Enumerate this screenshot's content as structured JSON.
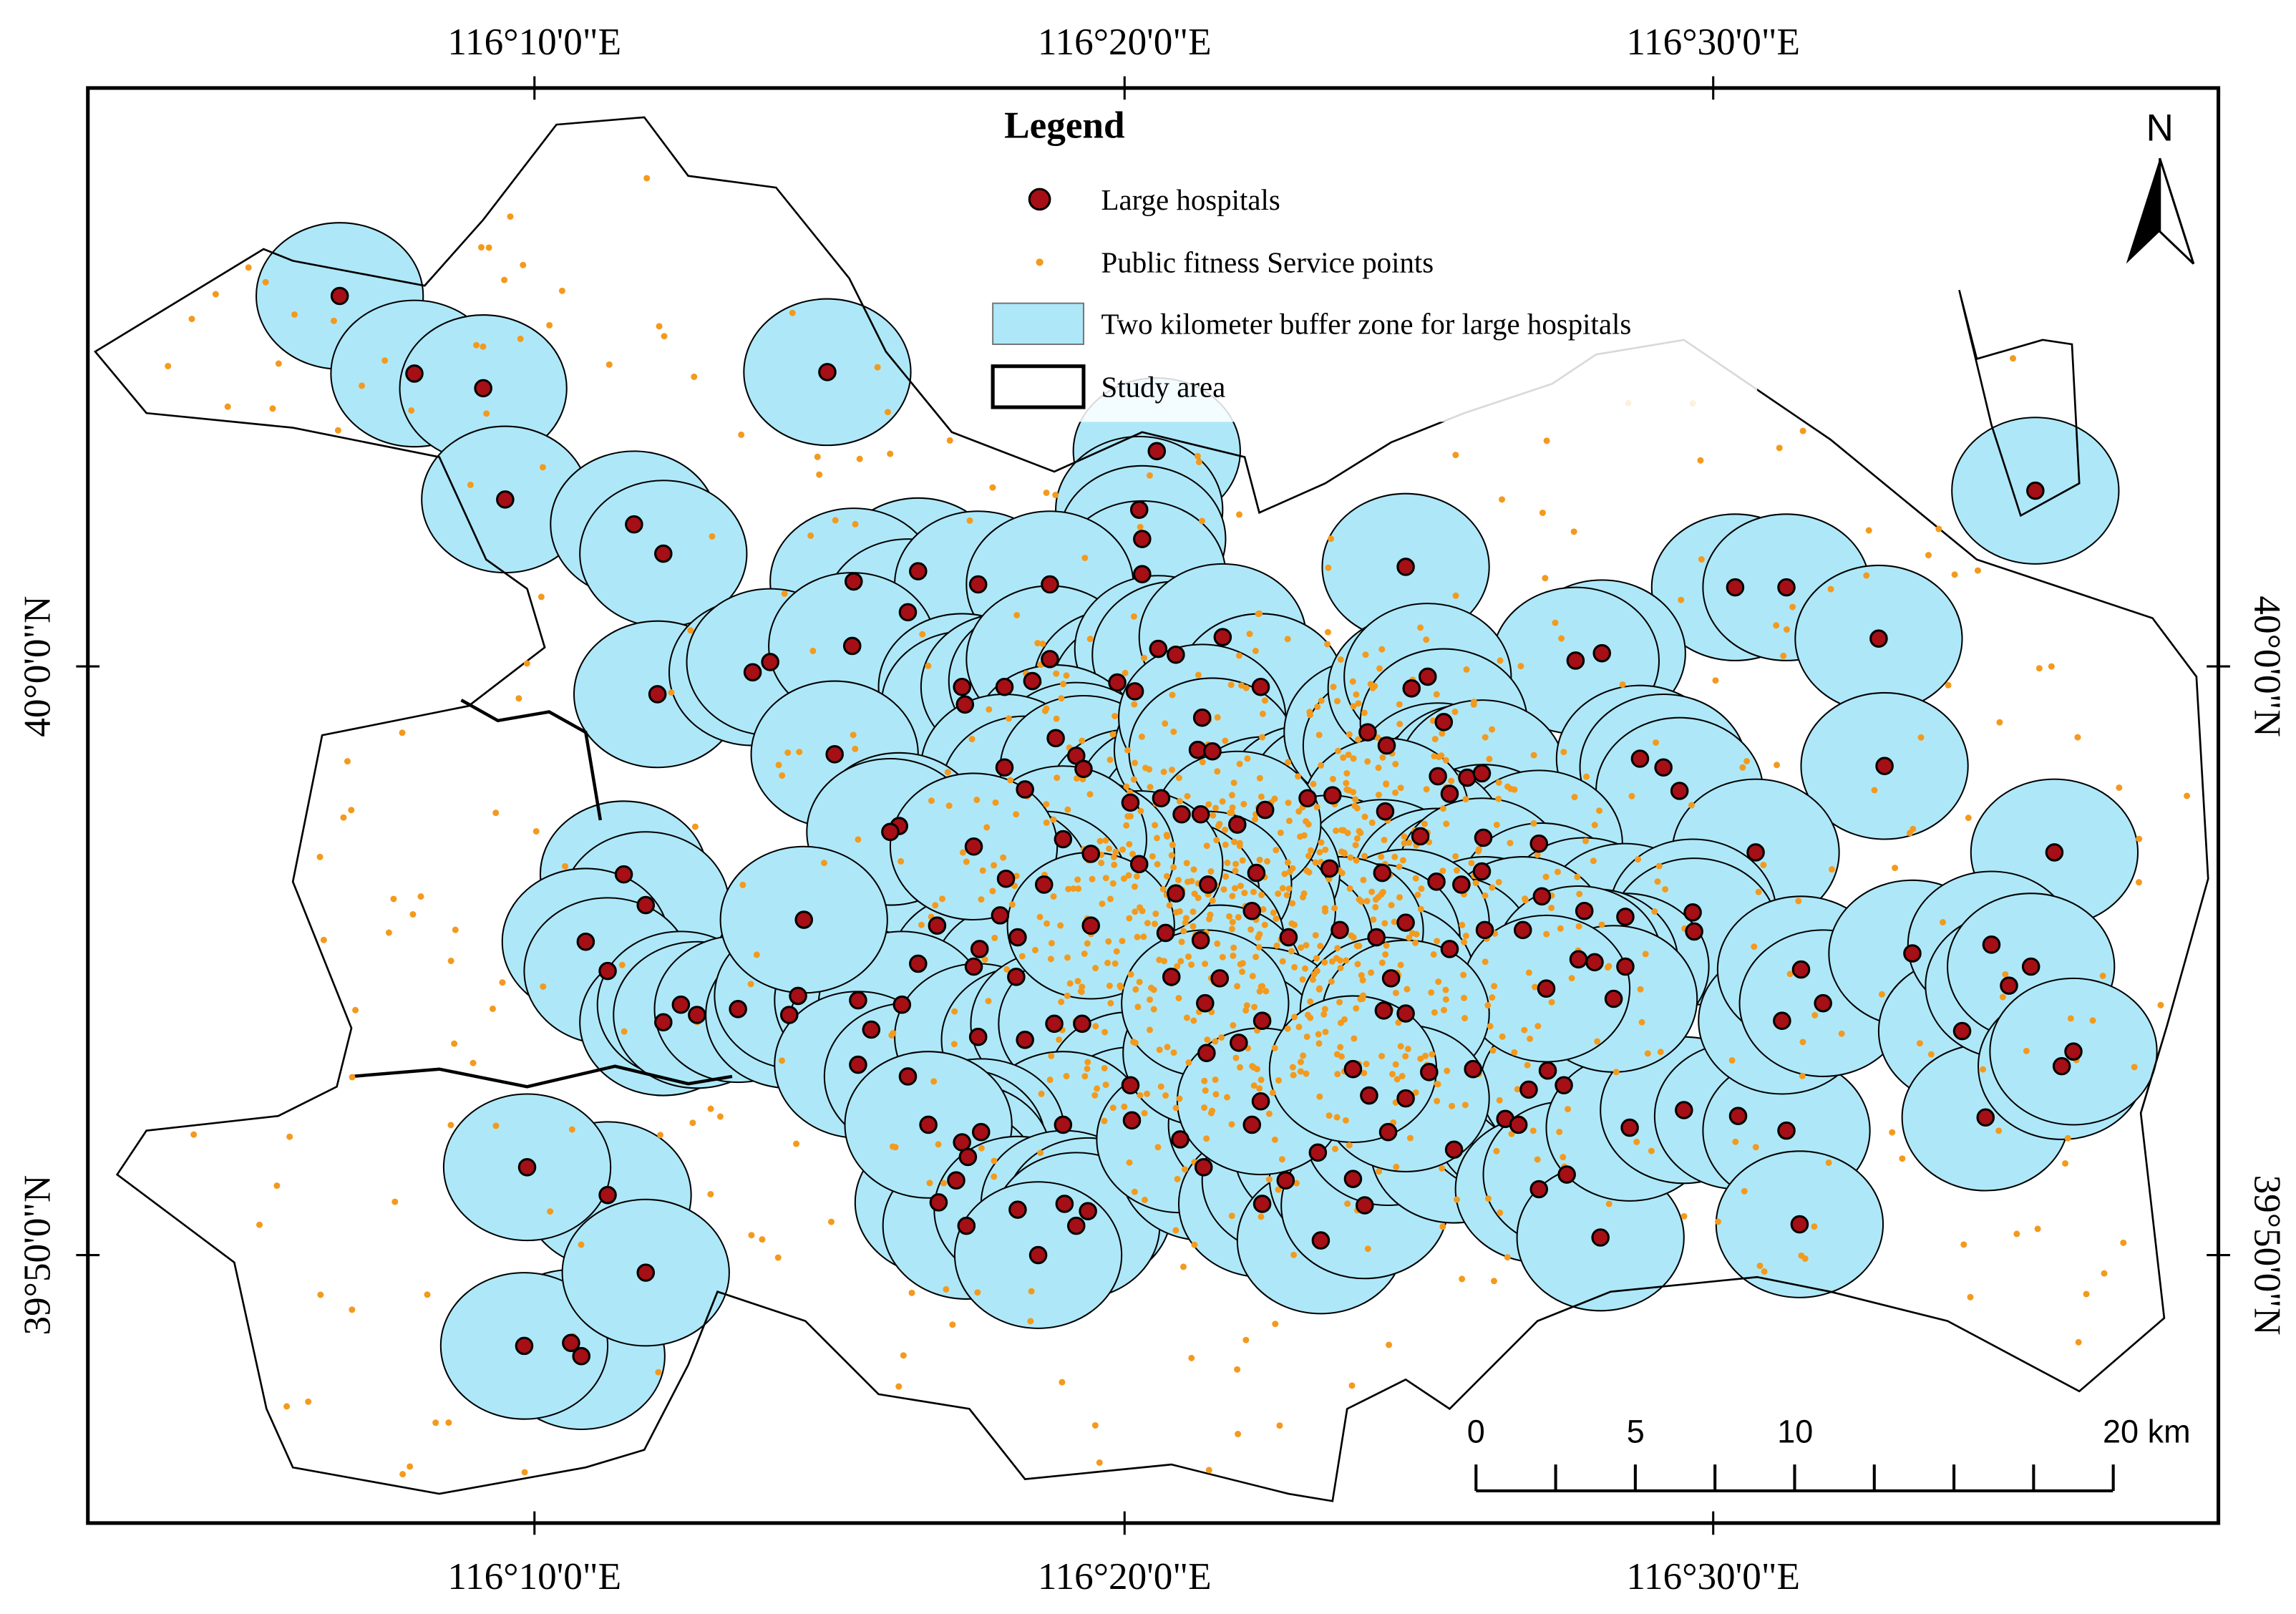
{
  "map": {
    "longitude_labels": [
      "116°10'0\"E",
      "116°20'0\"E",
      "116°30'0\"E"
    ],
    "latitude_labels": [
      "40°0'0\"N",
      "39°50'0\"N"
    ],
    "legend": {
      "title": "Legend",
      "items": [
        "Large hospitals",
        "Public fitness Service points",
        "Two kilometer buffer zone for large hospitals",
        "Study area"
      ]
    },
    "north_label": "N",
    "scale_bar_labels": [
      "0",
      "5",
      "10",
      "20 km"
    ]
  }
}
